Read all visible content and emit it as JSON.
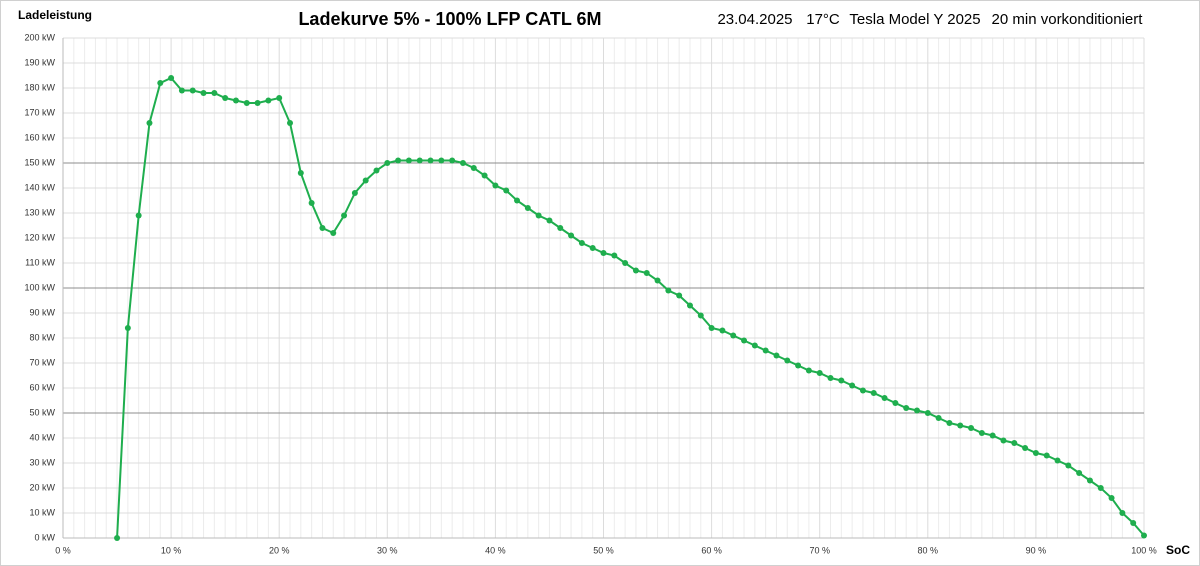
{
  "chart_data": {
    "type": "line",
    "title": "Ladekurve  5% - 100%  LFP CATL 6M",
    "ylabel": "Ladeleistung",
    "xlabel": "SoC",
    "annotations": [
      "23.04.2025",
      "17°C",
      "Tesla Model Y 2025",
      "20 min vorkonditioniert"
    ],
    "x": [
      5,
      6,
      7,
      8,
      9,
      10,
      11,
      12,
      13,
      14,
      15,
      16,
      17,
      18,
      19,
      20,
      21,
      22,
      23,
      24,
      25,
      26,
      27,
      28,
      29,
      30,
      31,
      32,
      33,
      34,
      35,
      36,
      37,
      38,
      39,
      40,
      41,
      42,
      43,
      44,
      45,
      46,
      47,
      48,
      49,
      50,
      51,
      52,
      53,
      54,
      55,
      56,
      57,
      58,
      59,
      60,
      61,
      62,
      63,
      64,
      65,
      66,
      67,
      68,
      69,
      70,
      71,
      72,
      73,
      74,
      75,
      76,
      77,
      78,
      79,
      80,
      81,
      82,
      83,
      84,
      85,
      86,
      87,
      88,
      89,
      90,
      91,
      92,
      93,
      94,
      95,
      96,
      97,
      98,
      99,
      100
    ],
    "series": [
      {
        "name": "Ladeleistung",
        "color": "#1fae4e",
        "values": [
          0,
          84,
          129,
          166,
          182,
          184,
          179,
          179,
          178,
          178,
          176,
          175,
          174,
          174,
          175,
          176,
          166,
          146,
          134,
          124,
          122,
          129,
          138,
          143,
          147,
          150,
          151,
          151,
          151,
          151,
          151,
          151,
          150,
          148,
          145,
          141,
          139,
          135,
          132,
          129,
          127,
          124,
          121,
          118,
          116,
          114,
          113,
          110,
          107,
          106,
          103,
          99,
          97,
          93,
          89,
          84,
          83,
          81,
          79,
          77,
          75,
          73,
          71,
          69,
          67,
          66,
          64,
          63,
          61,
          59,
          58,
          56,
          54,
          52,
          51,
          50,
          48,
          46,
          45,
          44,
          42,
          41,
          39,
          38,
          36,
          34,
          33,
          31,
          29,
          26,
          23,
          20,
          16,
          10,
          6,
          1
        ]
      }
    ],
    "xlim": [
      0,
      100
    ],
    "xticks": [
      {
        "value": 0,
        "label": "0 %"
      },
      {
        "value": 10,
        "label": "10 %"
      },
      {
        "value": 20,
        "label": "20 %"
      },
      {
        "value": 30,
        "label": "30 %"
      },
      {
        "value": 40,
        "label": "40 %"
      },
      {
        "value": 50,
        "label": "50 %"
      },
      {
        "value": 60,
        "label": "60 %"
      },
      {
        "value": 70,
        "label": "70 %"
      },
      {
        "value": 80,
        "label": "80 %"
      },
      {
        "value": 90,
        "label": "90 %"
      },
      {
        "value": 100,
        "label": "100 %"
      }
    ],
    "ylim": [
      0,
      200
    ],
    "yticks": [
      {
        "value": 0,
        "label": "0 kW"
      },
      {
        "value": 10,
        "label": "10 kW"
      },
      {
        "value": 20,
        "label": "20 kW"
      },
      {
        "value": 30,
        "label": "30 kW"
      },
      {
        "value": 40,
        "label": "40 kW"
      },
      {
        "value": 50,
        "label": "50 kW"
      },
      {
        "value": 60,
        "label": "60 kW"
      },
      {
        "value": 70,
        "label": "70 kW"
      },
      {
        "value": 80,
        "label": "80 kW"
      },
      {
        "value": 90,
        "label": "90 kW"
      },
      {
        "value": 100,
        "label": "100 kW"
      },
      {
        "value": 110,
        "label": "110 kW"
      },
      {
        "value": 120,
        "label": "120 kW"
      },
      {
        "value": 130,
        "label": "130 kW"
      },
      {
        "value": 140,
        "label": "140 kW"
      },
      {
        "value": 150,
        "label": "150 kW"
      },
      {
        "value": 160,
        "label": "160 kW"
      },
      {
        "value": 170,
        "label": "170 kW"
      },
      {
        "value": 180,
        "label": "180 kW"
      },
      {
        "value": 190,
        "label": "190 kW"
      },
      {
        "value": 200,
        "label": "200 kW"
      }
    ],
    "major_yticks": [
      50,
      100,
      150
    ],
    "grid": true
  }
}
